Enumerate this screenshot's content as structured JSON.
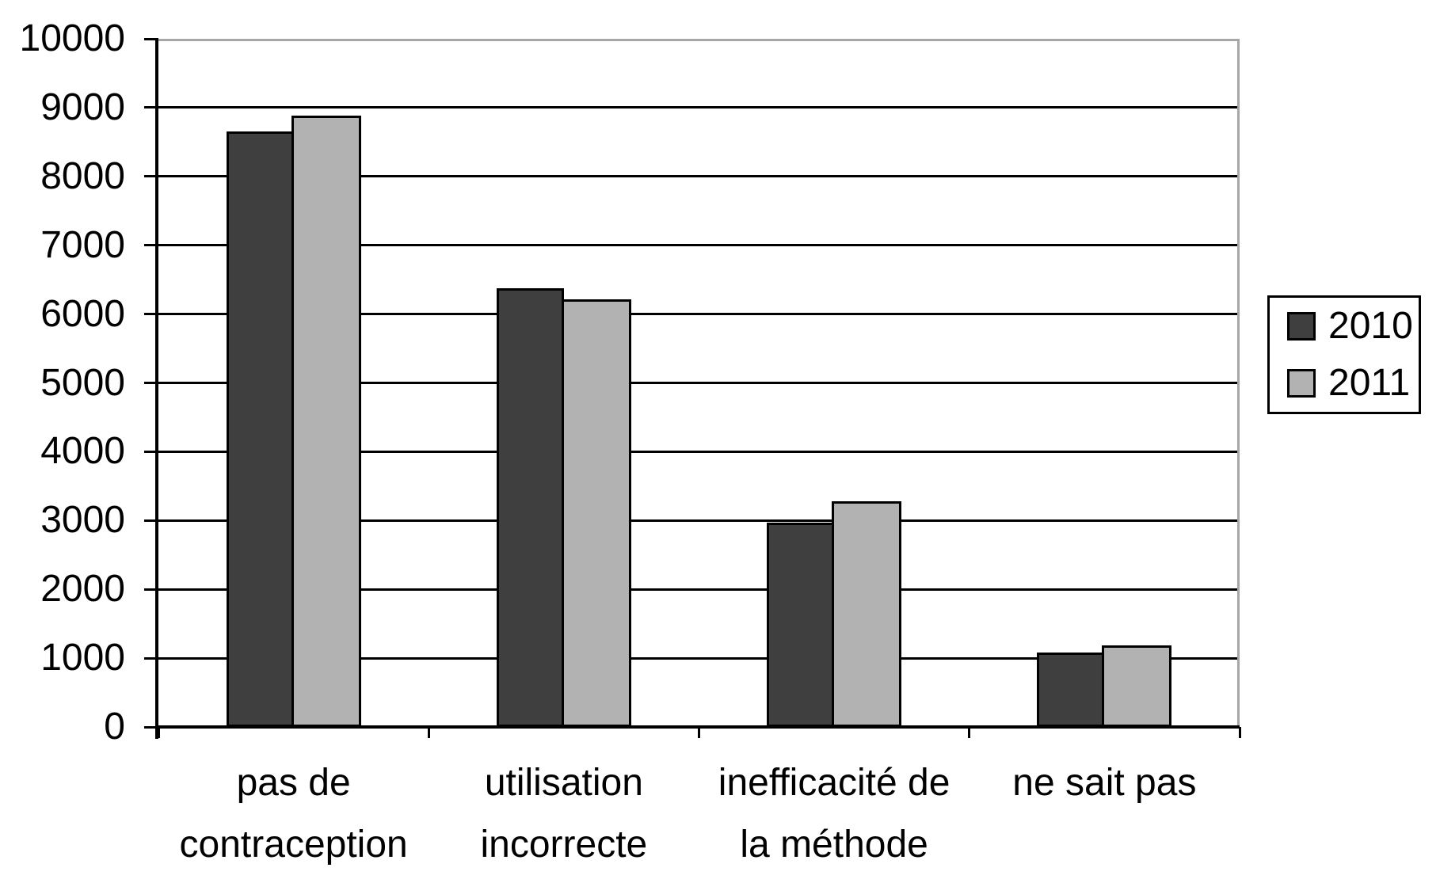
{
  "chart_data": {
    "type": "bar",
    "title": "",
    "xlabel": "",
    "ylabel": "",
    "categories": [
      "pas de contraception",
      "utilisation incorrecte",
      "inefficacité de la méthode",
      "ne sait pas"
    ],
    "category_label_lines": [
      [
        "pas de",
        "contraception"
      ],
      [
        "utilisation",
        "incorrecte"
      ],
      [
        "inefficacité de",
        "la méthode"
      ],
      [
        "ne sait pas"
      ]
    ],
    "series": [
      {
        "name": "2010",
        "color": "#3F3F3F",
        "values": [
          8650,
          6370,
          2970,
          1080
        ]
      },
      {
        "name": "2011",
        "color": "#B2B2B2",
        "values": [
          8880,
          6210,
          3280,
          1190
        ]
      }
    ],
    "y_axis": {
      "min": 0,
      "max": 10000,
      "step": 1000,
      "tick_labels": [
        "0",
        "1000",
        "2000",
        "3000",
        "4000",
        "5000",
        "6000",
        "7000",
        "8000",
        "9000",
        "10000"
      ]
    },
    "grid": true,
    "legend": {
      "position": "right",
      "entries": [
        "2010",
        "2011"
      ]
    },
    "colors": {
      "background": "#FFFFFF",
      "gridline": "#000000",
      "axis": "#000000",
      "plot_border": "#A6A6A6",
      "bar_outline": "#000000",
      "text": "#000000"
    }
  }
}
